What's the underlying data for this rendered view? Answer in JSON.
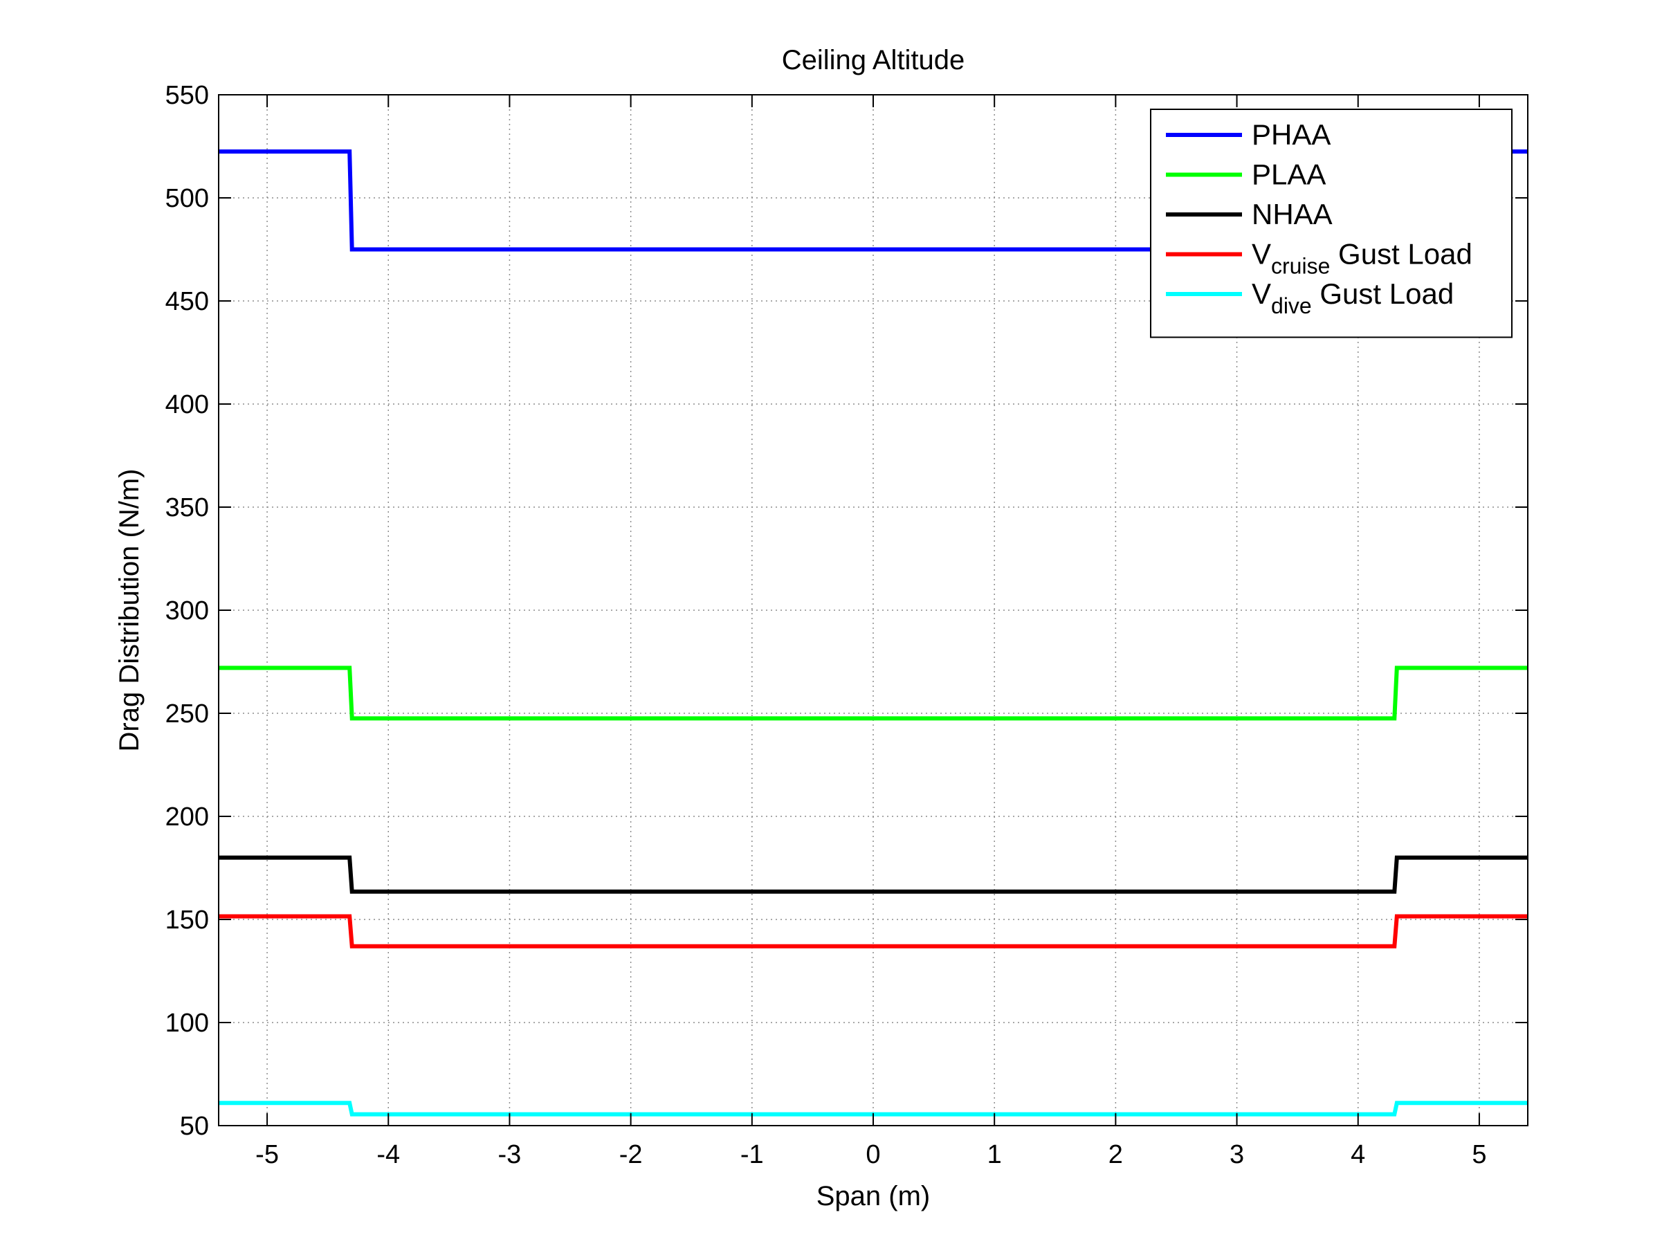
{
  "chart_data": {
    "type": "line",
    "title": "Ceiling Altitude",
    "xlabel": "Span (m)",
    "ylabel": "Drag Distribution (N/m)",
    "xlim": [
      -5.4,
      5.4
    ],
    "ylim": [
      50,
      550
    ],
    "xticks": [
      -5,
      -4,
      -3,
      -2,
      -1,
      0,
      1,
      2,
      3,
      4,
      5
    ],
    "yticks": [
      50,
      100,
      150,
      200,
      250,
      300,
      350,
      400,
      450,
      500,
      550
    ],
    "grid": true,
    "legend_position": "top-right",
    "series": [
      {
        "name": "PHAA",
        "legend": {
          "main": "PHAA",
          "sub": "",
          "suffix": ""
        },
        "color": "#0000ff",
        "x": [
          -5.4,
          -4.32,
          -4.3,
          4.3,
          4.32,
          5.4
        ],
        "y": [
          522.5,
          522.5,
          475,
          475,
          522.5,
          522.5
        ]
      },
      {
        "name": "PLAA",
        "legend": {
          "main": "PLAA",
          "sub": "",
          "suffix": ""
        },
        "color": "#00ff00",
        "x": [
          -5.4,
          -4.32,
          -4.3,
          4.3,
          4.32,
          5.4
        ],
        "y": [
          272,
          272,
          247.5,
          247.5,
          272,
          272
        ]
      },
      {
        "name": "NHAA",
        "legend": {
          "main": "NHAA",
          "sub": "",
          "suffix": ""
        },
        "color": "#000000",
        "x": [
          -5.4,
          -4.32,
          -4.3,
          4.3,
          4.32,
          5.4
        ],
        "y": [
          180,
          180,
          163.5,
          163.5,
          180,
          180
        ]
      },
      {
        "name": "Vcruise Gust Load",
        "legend": {
          "main": "V",
          "sub": "cruise",
          "suffix": " Gust Load"
        },
        "color": "#ff0000",
        "x": [
          -5.4,
          -4.32,
          -4.3,
          4.3,
          4.32,
          5.4
        ],
        "y": [
          151.5,
          151.5,
          137,
          137,
          151.5,
          151.5
        ]
      },
      {
        "name": "Vdive Gust Load",
        "legend": {
          "main": "V",
          "sub": "dive",
          "suffix": " Gust Load"
        },
        "color": "#00ffff",
        "x": [
          -5.4,
          -4.32,
          -4.3,
          4.3,
          4.32,
          5.4
        ],
        "y": [
          61,
          61,
          55.5,
          55.5,
          61,
          61
        ]
      }
    ]
  }
}
